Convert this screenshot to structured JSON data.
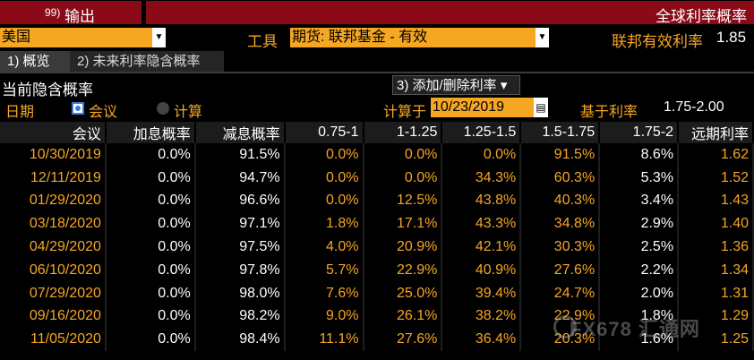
{
  "header": {
    "command_number": "99)",
    "command_label": "输出",
    "app_title": "全球利率概率"
  },
  "toolbar": {
    "country": "美国",
    "tool_label": "工具",
    "tool_value": "期货: 联邦基金 - 有效",
    "effective_rate_label": "联邦有效利率",
    "effective_rate_value": "1.85"
  },
  "tabs": [
    {
      "label": "1) 概览"
    },
    {
      "label": "2) 未来利率隐含概率"
    }
  ],
  "section": {
    "title": "当前隐含概率",
    "add_remove_button": "3) 添加/删除利率 ▾"
  },
  "options": {
    "date_label": "日期",
    "meeting_label": "会议",
    "calc_label": "计算",
    "calc_on_label": "计算于",
    "calc_date": "10/23/2019",
    "based_on_label": "基于利率",
    "based_on_value": "1.75-2.00"
  },
  "table": {
    "columns": [
      "会议",
      "加息概率",
      "减息概率",
      "0.75-1",
      "1-1.25",
      "1.25-1.5",
      "1.5-1.75",
      "1.75-2",
      "远期利率"
    ],
    "rows": [
      [
        "10/30/2019",
        "0.0%",
        "91.5%",
        "0.0%",
        "0.0%",
        "0.0%",
        "91.5%",
        "8.6%",
        "1.62"
      ],
      [
        "12/11/2019",
        "0.0%",
        "94.7%",
        "0.0%",
        "0.0%",
        "34.3%",
        "60.3%",
        "5.3%",
        "1.52"
      ],
      [
        "01/29/2020",
        "0.0%",
        "96.6%",
        "0.0%",
        "12.5%",
        "43.8%",
        "40.3%",
        "3.4%",
        "1.43"
      ],
      [
        "03/18/2020",
        "0.0%",
        "97.1%",
        "1.8%",
        "17.1%",
        "43.3%",
        "34.8%",
        "2.9%",
        "1.40"
      ],
      [
        "04/29/2020",
        "0.0%",
        "97.5%",
        "4.0%",
        "20.9%",
        "42.1%",
        "30.3%",
        "2.5%",
        "1.36"
      ],
      [
        "06/10/2020",
        "0.0%",
        "97.8%",
        "5.7%",
        "22.9%",
        "40.9%",
        "27.6%",
        "2.2%",
        "1.34"
      ],
      [
        "07/29/2020",
        "0.0%",
        "98.0%",
        "7.6%",
        "25.0%",
        "39.4%",
        "24.7%",
        "2.0%",
        "1.31"
      ],
      [
        "09/16/2020",
        "0.0%",
        "98.2%",
        "9.0%",
        "26.1%",
        "38.2%",
        "22.9%",
        "1.8%",
        "1.29"
      ],
      [
        "11/05/2020",
        "0.0%",
        "98.4%",
        "11.1%",
        "27.6%",
        "36.4%",
        "20.3%",
        "1.6%",
        "1.25"
      ]
    ]
  },
  "watermark": "FX678 汇通网",
  "colors": {
    "accent_orange": "#f5a623",
    "title_red": "#8a0a17",
    "background": "#000000"
  }
}
